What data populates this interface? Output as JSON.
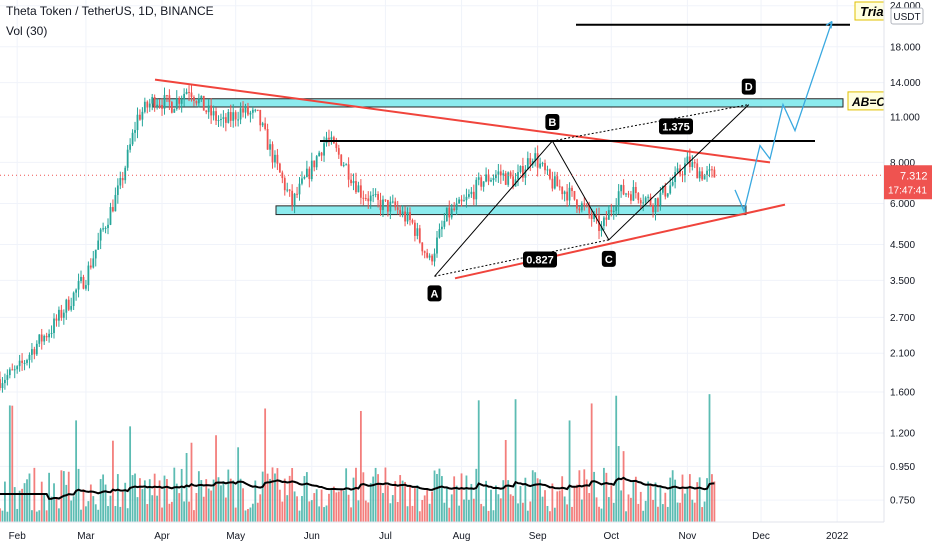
{
  "header": {
    "title": "Theta Token / TetherUS, 1D, BINANCE",
    "volume_label": "Vol (30)"
  },
  "chart_data": {
    "type": "candlestick",
    "currency_badge": "USDT",
    "price_axis": {
      "scale": "log",
      "ticks": [
        "24.000",
        "18.000",
        "14.000",
        "11.000",
        "8.000",
        "6.000",
        "4.500",
        "3.500",
        "2.700",
        "2.100",
        "1.600",
        "1.200",
        "0.950",
        "0.750"
      ],
      "tick_values": [
        24,
        18,
        14,
        11,
        8,
        6,
        4.5,
        3.5,
        2.7,
        2.1,
        1.6,
        1.2,
        0.95,
        0.75
      ]
    },
    "time_axis": {
      "ticks": [
        "Feb",
        "Mar",
        "Apr",
        "May",
        "Jun",
        "Jul",
        "Aug",
        "Sep",
        "Oct",
        "Nov",
        "Dec",
        "2022"
      ]
    },
    "last_price": {
      "value": "7.312",
      "countdown": "17:47:41",
      "color": "#ef5350"
    },
    "colors": {
      "up": "#26a69a",
      "down": "#ef5350",
      "trend": "#f0443c",
      "zone": "#79e8ec",
      "projection": "#3aa9e0",
      "ma": "#000000"
    },
    "price_path": [
      [
        "2021-01-25",
        1.75
      ],
      [
        "2021-02-01",
        1.85
      ],
      [
        "2021-02-08",
        2.2
      ],
      [
        "2021-02-15",
        2.5
      ],
      [
        "2021-02-22",
        3.0
      ],
      [
        "2021-03-01",
        3.6
      ],
      [
        "2021-03-08",
        5.0
      ],
      [
        "2021-03-15",
        6.8
      ],
      [
        "2021-03-22",
        11.0
      ],
      [
        "2021-03-29",
        12.5
      ],
      [
        "2021-04-05",
        12.0
      ],
      [
        "2021-04-12",
        13.5
      ],
      [
        "2021-04-19",
        11.5
      ],
      [
        "2021-04-26",
        10.5
      ],
      [
        "2021-05-03",
        11.5
      ],
      [
        "2021-05-10",
        11.0
      ],
      [
        "2021-05-17",
        8.0
      ],
      [
        "2021-05-24",
        6.0
      ],
      [
        "2021-05-31",
        7.5
      ],
      [
        "2021-06-07",
        9.5
      ],
      [
        "2021-06-14",
        8.0
      ],
      [
        "2021-06-21",
        6.5
      ],
      [
        "2021-06-28",
        6.0
      ],
      [
        "2021-07-05",
        5.8
      ],
      [
        "2021-07-12",
        5.2
      ],
      [
        "2021-07-19",
        4.0
      ],
      [
        "2021-07-26",
        5.5
      ],
      [
        "2021-08-02",
        6.0
      ],
      [
        "2021-08-09",
        7.0
      ],
      [
        "2021-08-16",
        7.4
      ],
      [
        "2021-08-23",
        7.0
      ],
      [
        "2021-08-30",
        8.5
      ],
      [
        "2021-09-06",
        7.0
      ],
      [
        "2021-09-13",
        6.5
      ],
      [
        "2021-09-20",
        5.8
      ],
      [
        "2021-09-27",
        5.0
      ],
      [
        "2021-10-04",
        6.5
      ],
      [
        "2021-10-11",
        6.5
      ],
      [
        "2021-10-18",
        6.0
      ],
      [
        "2021-10-25",
        6.8
      ],
      [
        "2021-11-01",
        8.0
      ],
      [
        "2021-11-08",
        7.312
      ]
    ],
    "annotations": {
      "points": [
        {
          "label": "A",
          "date": "2021-07-21",
          "price": 3.6
        },
        {
          "label": "B",
          "date": "2021-09-07",
          "price": 9.3
        },
        {
          "label": "C",
          "date": "2021-09-30",
          "price": 4.65
        },
        {
          "label": "D",
          "date": "2021-11-26",
          "price": 12.0
        }
      ],
      "ratios": [
        {
          "text": "1.375"
        },
        {
          "text": "0.827"
        }
      ],
      "side_labels": [
        "Tria",
        "AB=C"
      ]
    },
    "volume": {
      "ma_label": "Vol (30)"
    }
  }
}
